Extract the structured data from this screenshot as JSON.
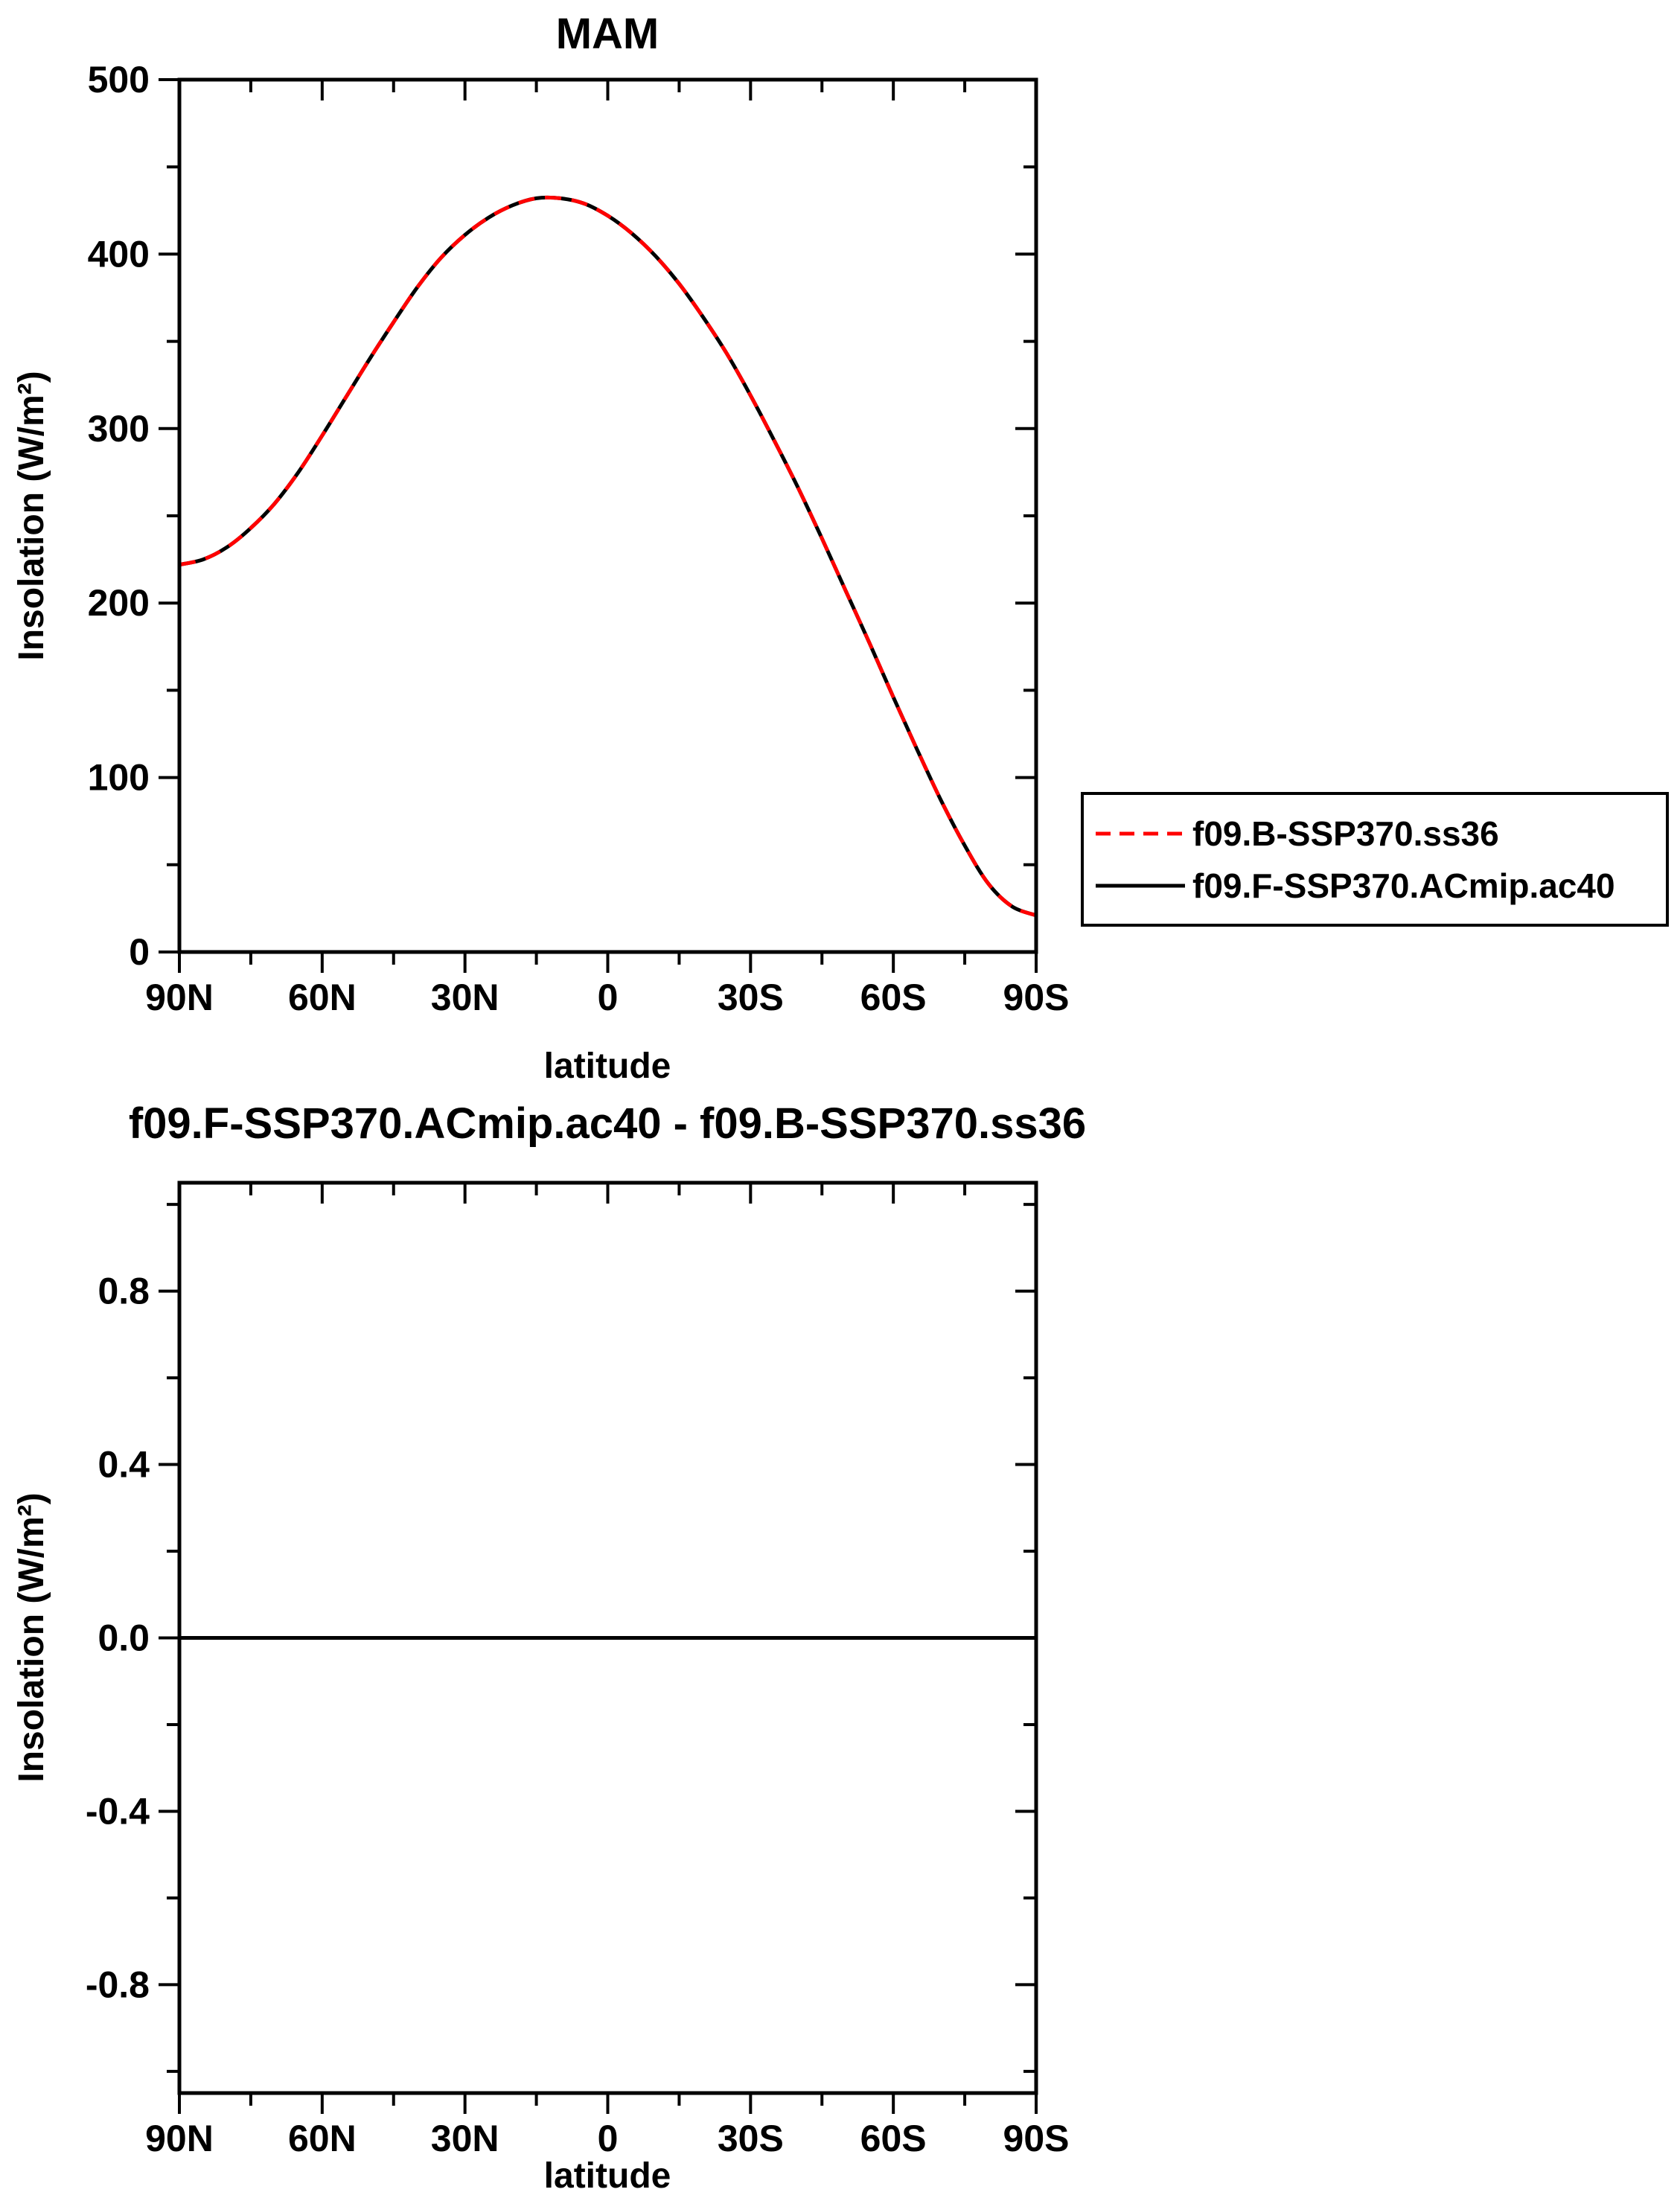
{
  "figure": {
    "background_color": "#ffffff",
    "axis_color": "#000000",
    "text_color": "#000000"
  },
  "legend": {
    "position": "outside-right",
    "border_color": "#000000"
  },
  "chart_data": [
    {
      "type": "line",
      "title": "MAM",
      "xlabel": "latitude",
      "ylabel": "Insolation (W/m²)",
      "xlim": [
        90,
        -90
      ],
      "ylim": [
        0,
        500
      ],
      "grid": false,
      "legend_position": "outside-right",
      "xticks": {
        "values": [
          90,
          60,
          30,
          0,
          -30,
          -60,
          -90
        ],
        "labels": [
          "90N",
          "60N",
          "30N",
          "0",
          "30S",
          "60S",
          "90S"
        ],
        "minor_step": 15
      },
      "yticks": {
        "values": [
          0,
          100,
          200,
          300,
          400,
          500
        ],
        "labels": [
          "0",
          "100",
          "200",
          "300",
          "400",
          "500"
        ],
        "minor_step": 50
      },
      "x": [
        90,
        85,
        80,
        75,
        70,
        65,
        60,
        55,
        50,
        45,
        40,
        35,
        30,
        25,
        20,
        15,
        10,
        5,
        0,
        -5,
        -10,
        -15,
        -20,
        -25,
        -30,
        -35,
        -40,
        -45,
        -50,
        -55,
        -60,
        -65,
        -70,
        -75,
        -80,
        -85,
        -90
      ],
      "series": [
        {
          "name": "f09.B-SSP370.ss36",
          "color": "#ff0000",
          "style": "dashed",
          "values": [
            222,
            225,
            232,
            243,
            257,
            275,
            296,
            318,
            340,
            361,
            381,
            398,
            411,
            421,
            428,
            432,
            432,
            429,
            422,
            412,
            399,
            383,
            364,
            343,
            319,
            293,
            266,
            237,
            207,
            177,
            146,
            116,
            87,
            61,
            39,
            26,
            21
          ]
        },
        {
          "name": "f09.F-SSP370.ACmip.ac40",
          "color": "#000000",
          "style": "solid",
          "values": [
            222,
            225,
            232,
            243,
            257,
            275,
            296,
            318,
            340,
            361,
            381,
            398,
            411,
            421,
            428,
            432,
            432,
            429,
            422,
            412,
            399,
            383,
            364,
            343,
            319,
            293,
            266,
            237,
            207,
            177,
            146,
            116,
            87,
            61,
            39,
            26,
            21
          ]
        }
      ]
    },
    {
      "type": "line",
      "title": "f09.F-SSP370.ACmip.ac40 - f09.B-SSP370.ss36",
      "xlabel": "latitude",
      "ylabel": "Insolation (W/m²)",
      "xlim": [
        90,
        -90
      ],
      "ylim": [
        -1.05,
        1.05
      ],
      "grid": false,
      "legend_position": "none",
      "xticks": {
        "values": [
          90,
          60,
          30,
          0,
          -30,
          -60,
          -90
        ],
        "labels": [
          "90N",
          "60N",
          "30N",
          "0",
          "30S",
          "60S",
          "90S"
        ],
        "minor_step": 15
      },
      "yticks": {
        "values": [
          -0.8,
          -0.4,
          0,
          0.4,
          0.8
        ],
        "labels": [
          "-0.8",
          "-0.4",
          "0.0",
          "0.4",
          "0.8"
        ],
        "minor_step": 0.2
      },
      "x": [
        90,
        85,
        80,
        75,
        70,
        65,
        60,
        55,
        50,
        45,
        40,
        35,
        30,
        25,
        20,
        15,
        10,
        5,
        0,
        -5,
        -10,
        -15,
        -20,
        -25,
        -30,
        -35,
        -40,
        -45,
        -50,
        -55,
        -60,
        -65,
        -70,
        -75,
        -80,
        -85,
        -90
      ],
      "series": [
        {
          "name": "f09.F-SSP370.ACmip.ac40 - f09.B-SSP370.ss36",
          "color": "#000000",
          "style": "solid",
          "values": [
            0,
            0,
            0,
            0,
            0,
            0,
            0,
            0,
            0,
            0,
            0,
            0,
            0,
            0,
            0,
            0,
            0,
            0,
            0,
            0,
            0,
            0,
            0,
            0,
            0,
            0,
            0,
            0,
            0,
            0,
            0,
            0,
            0,
            0,
            0,
            0,
            0
          ]
        }
      ]
    }
  ]
}
